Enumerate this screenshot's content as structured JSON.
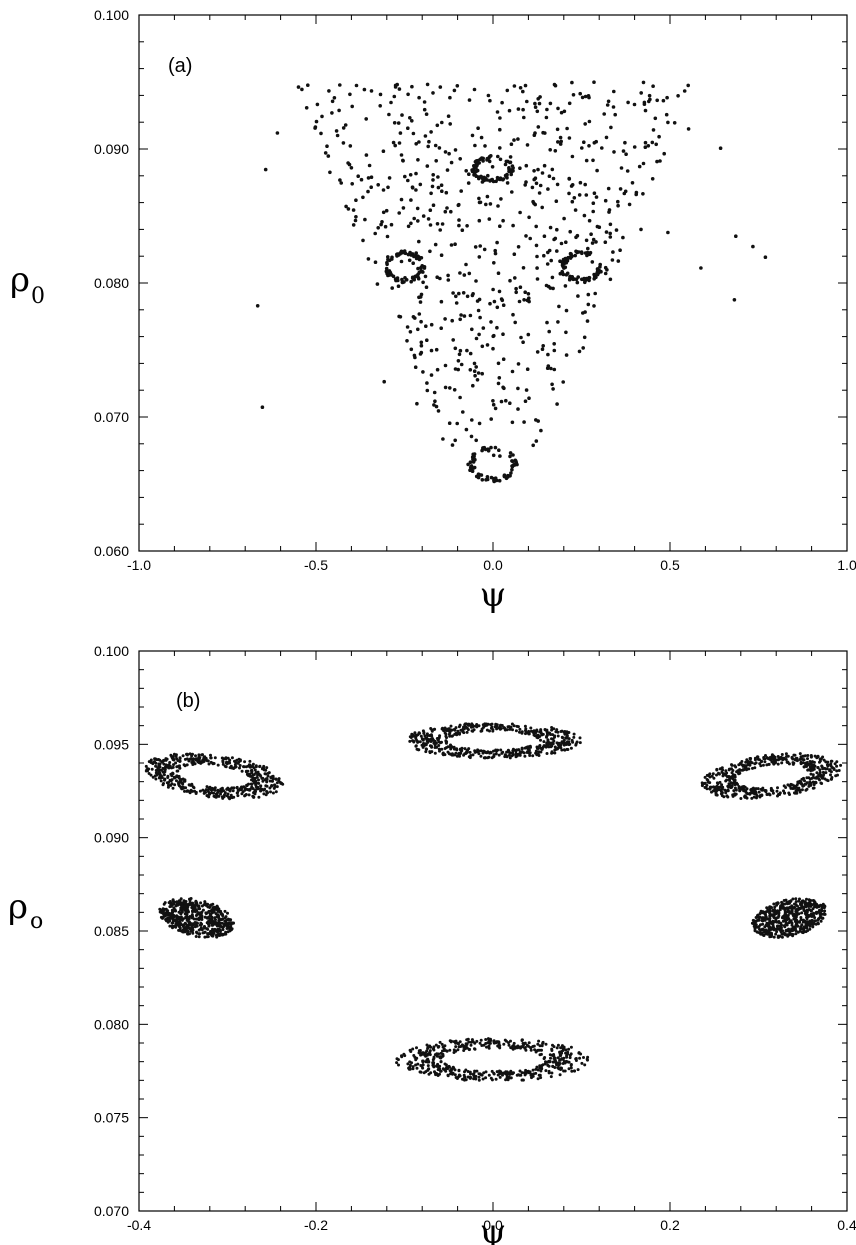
{
  "chart_data": [
    {
      "type": "scatter",
      "panel_label": "(a)",
      "xlabel": "ψ",
      "ylabel": "ρ",
      "ylabel_sub": "0",
      "xlim": [
        -1.0,
        1.0
      ],
      "ylim": [
        0.06,
        0.1
      ],
      "xticks": [
        "-1.0",
        "-0.5",
        "0.0",
        "0.5",
        "1.0"
      ],
      "yticks": [
        "0.060",
        "0.070",
        "0.080",
        "0.090",
        "0.100"
      ],
      "grid": false,
      "islands": [
        {
          "cx": 0.0,
          "cy": 0.0885,
          "rx": 0.055,
          "ry": 0.0009
        },
        {
          "cx": -0.25,
          "cy": 0.0812,
          "rx": 0.055,
          "ry": 0.0011
        },
        {
          "cx": 0.25,
          "cy": 0.0812,
          "rx": 0.055,
          "ry": 0.0011
        },
        {
          "cx": 0.0,
          "cy": 0.0665,
          "rx": 0.065,
          "ry": 0.0012
        }
      ],
      "scatter_region": {
        "x_range": [
          -0.75,
          0.8
        ],
        "y_range": [
          0.067,
          0.095
        ],
        "approx_points": 700
      }
    },
    {
      "type": "scatter",
      "panel_label": "(b)",
      "xlabel": "ψ",
      "ylabel": "ρ",
      "ylabel_sub": "o",
      "xlim": [
        -0.4,
        0.4
      ],
      "ylim": [
        0.07,
        0.1
      ],
      "xticks": [
        "-0.4",
        "-0.2",
        "0.0",
        "0.2",
        "0.4"
      ],
      "yticks": [
        "0.070",
        "0.075",
        "0.080",
        "0.085",
        "0.090",
        "0.095",
        "0.100"
      ],
      "grid": false,
      "islands": [
        {
          "cx": 0.0,
          "cy": 0.0952,
          "rx": 0.095,
          "ry": 0.0009,
          "hollow": true
        },
        {
          "cx": -0.315,
          "cy": 0.0933,
          "rx": 0.075,
          "ry": 0.0011,
          "tilt": 1,
          "hollow": true
        },
        {
          "cx": 0.315,
          "cy": 0.0933,
          "rx": 0.075,
          "ry": 0.0011,
          "tilt": -1,
          "hollow": true
        },
        {
          "cx": -0.335,
          "cy": 0.0857,
          "rx": 0.042,
          "ry": 0.001,
          "tilt": 1,
          "hollow": false
        },
        {
          "cx": 0.335,
          "cy": 0.0857,
          "rx": 0.042,
          "ry": 0.001,
          "tilt": -1,
          "hollow": false
        },
        {
          "cx": 0.0,
          "cy": 0.0781,
          "rx": 0.105,
          "ry": 0.0011,
          "hollow": true
        }
      ]
    }
  ]
}
